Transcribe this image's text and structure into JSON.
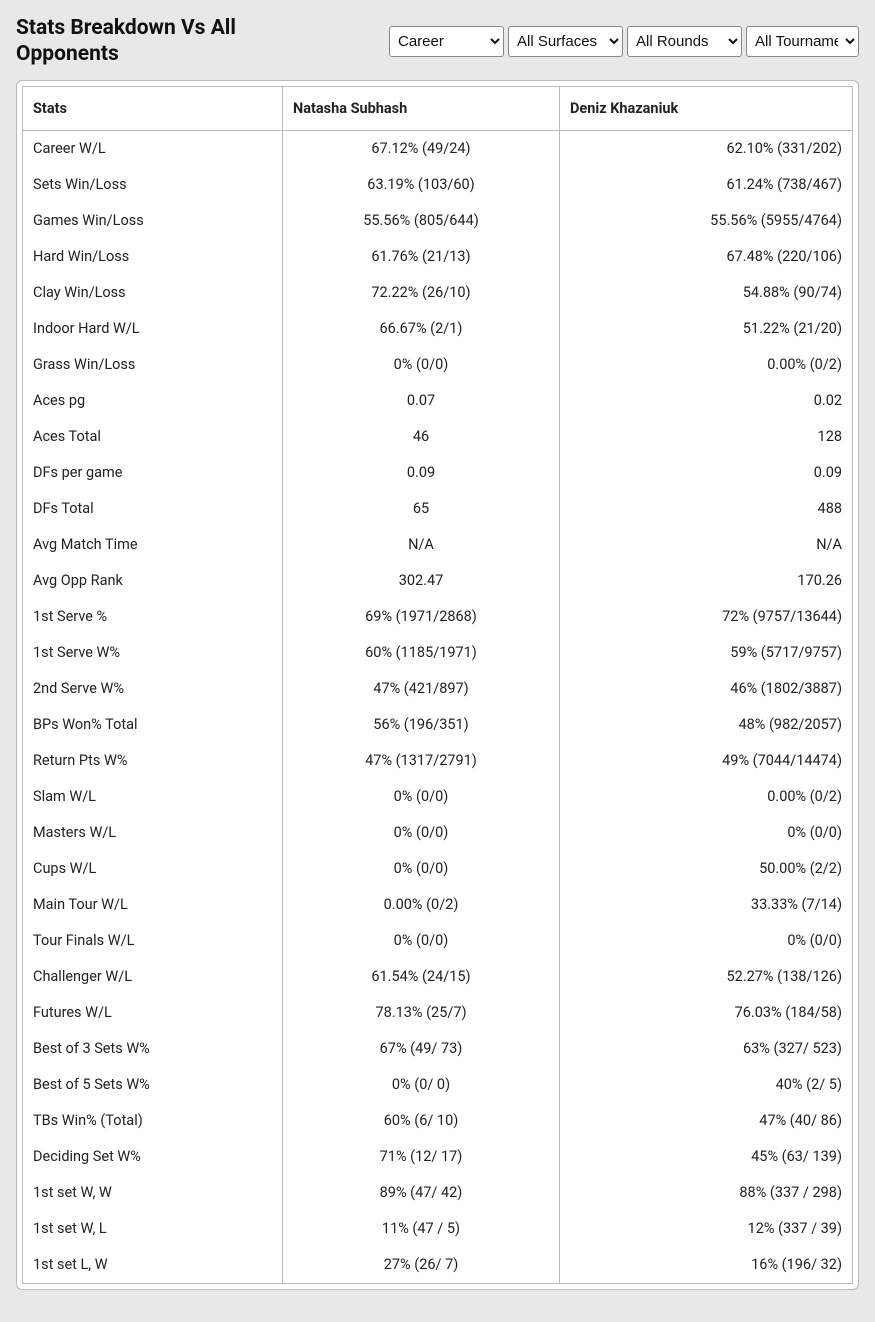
{
  "title": "Stats Breakdown Vs All Opponents",
  "filters": {
    "career": {
      "selected": "Career",
      "options": [
        "Career"
      ]
    },
    "surface": {
      "selected": "All Surfaces",
      "options": [
        "All Surfaces"
      ]
    },
    "rounds": {
      "selected": "All Rounds",
      "options": [
        "All Rounds"
      ]
    },
    "tournaments": {
      "selected": "All Tournaments",
      "options": [
        "All Tournaments"
      ]
    }
  },
  "columns": {
    "stats": "Stats",
    "player1": "Natasha Subhash",
    "player2": "Deniz Khazaniuk"
  },
  "rows": [
    {
      "label": "Career W/L",
      "p1": "67.12% (49/24)",
      "p2": "62.10% (331/202)"
    },
    {
      "label": "Sets Win/Loss",
      "p1": "63.19% (103/60)",
      "p2": "61.24% (738/467)"
    },
    {
      "label": "Games Win/Loss",
      "p1": "55.56% (805/644)",
      "p2": "55.56% (5955/4764)"
    },
    {
      "label": "Hard Win/Loss",
      "p1": "61.76% (21/13)",
      "p2": "67.48% (220/106)"
    },
    {
      "label": "Clay Win/Loss",
      "p1": "72.22% (26/10)",
      "p2": "54.88% (90/74)"
    },
    {
      "label": "Indoor Hard W/L",
      "p1": "66.67% (2/1)",
      "p2": "51.22% (21/20)"
    },
    {
      "label": "Grass Win/Loss",
      "p1": "0% (0/0)",
      "p2": "0.00% (0/2)"
    },
    {
      "label": "Aces pg",
      "p1": "0.07",
      "p2": "0.02"
    },
    {
      "label": "Aces Total",
      "p1": "46",
      "p2": "128"
    },
    {
      "label": "DFs per game",
      "p1": "0.09",
      "p2": "0.09"
    },
    {
      "label": "DFs Total",
      "p1": "65",
      "p2": "488"
    },
    {
      "label": "Avg Match Time",
      "p1": "N/A",
      "p2": "N/A"
    },
    {
      "label": "Avg Opp Rank",
      "p1": "302.47",
      "p2": "170.26"
    },
    {
      "label": "1st Serve %",
      "p1": "69% (1971/2868)",
      "p2": "72% (9757/13644)"
    },
    {
      "label": "1st Serve W%",
      "p1": "60% (1185/1971)",
      "p2": "59% (5717/9757)"
    },
    {
      "label": "2nd Serve W%",
      "p1": "47% (421/897)",
      "p2": "46% (1802/3887)"
    },
    {
      "label": "BPs Won% Total",
      "p1": "56% (196/351)",
      "p2": "48% (982/2057)"
    },
    {
      "label": "Return Pts W%",
      "p1": "47% (1317/2791)",
      "p2": "49% (7044/14474)"
    },
    {
      "label": "Slam W/L",
      "p1": "0% (0/0)",
      "p2": "0.00% (0/2)"
    },
    {
      "label": "Masters W/L",
      "p1": "0% (0/0)",
      "p2": "0% (0/0)"
    },
    {
      "label": "Cups W/L",
      "p1": "0% (0/0)",
      "p2": "50.00% (2/2)"
    },
    {
      "label": "Main Tour W/L",
      "p1": "0.00% (0/2)",
      "p2": "33.33% (7/14)"
    },
    {
      "label": "Tour Finals W/L",
      "p1": "0% (0/0)",
      "p2": "0% (0/0)"
    },
    {
      "label": "Challenger W/L",
      "p1": "61.54% (24/15)",
      "p2": "52.27% (138/126)"
    },
    {
      "label": "Futures W/L",
      "p1": "78.13% (25/7)",
      "p2": "76.03% (184/58)"
    },
    {
      "label": "Best of 3 Sets W%",
      "p1": "67% (49/ 73)",
      "p2": "63% (327/ 523)"
    },
    {
      "label": "Best of 5 Sets W%",
      "p1": "0% (0/ 0)",
      "p2": "40% (2/ 5)"
    },
    {
      "label": "TBs Win% (Total)",
      "p1": "60% (6/ 10)",
      "p2": "47% (40/ 86)"
    },
    {
      "label": "Deciding Set W%",
      "p1": "71% (12/ 17)",
      "p2": "45% (63/ 139)"
    },
    {
      "label": "1st set W, W",
      "p1": "89% (47/ 42)",
      "p2": "88% (337 / 298)"
    },
    {
      "label": "1st set W, L",
      "p1": "11% (47 / 5)",
      "p2": "12% (337 / 39)"
    },
    {
      "label": "1st set L, W",
      "p1": "27% (26/ 7)",
      "p2": "16% (196/ 32)"
    }
  ],
  "colors": {
    "page_bg": "#e8e8e8",
    "table_bg": "#ffffff",
    "border": "#bbbbbb",
    "text": "#222222"
  }
}
